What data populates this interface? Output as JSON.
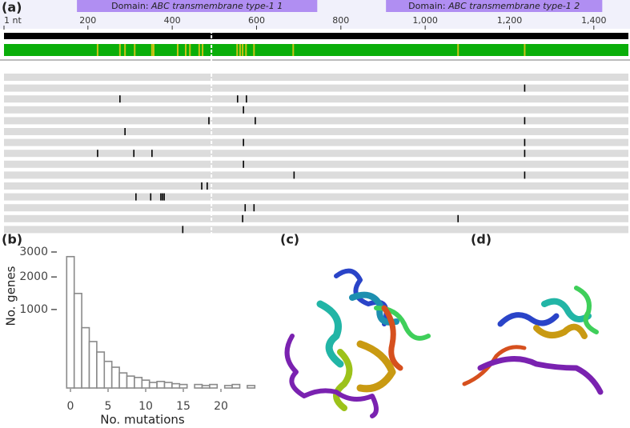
{
  "chart_data": [
    {
      "type": "track",
      "panel_label": "(a)",
      "xlim": [
        1,
        1482
      ],
      "xticks": [
        {
          "value": 1,
          "label": "1 nt"
        },
        200,
        400,
        600,
        800,
        {
          "value": 1000,
          "label": "1,000"
        },
        {
          "value": 1200,
          "label": "1,200"
        },
        {
          "value": 1400,
          "label": "1,400"
        }
      ],
      "domains": [
        {
          "prefix": "Domain:",
          "name": "ABC transmembrane type-1 1",
          "start": 174,
          "end": 744
        },
        {
          "prefix": "Domain:",
          "name": "ABC transmembrane type-1 2",
          "start": 907,
          "end": 1420
        }
      ],
      "break_position": 493,
      "variable_sites": [
        223,
        276,
        288,
        311,
        352,
        356,
        413,
        432,
        442,
        464,
        472,
        554,
        561,
        567,
        575,
        594,
        687,
        1078,
        1236
      ],
      "tracks": [
        [],
        [
          1236
        ],
        [
          276,
          555,
          576
        ],
        [
          569
        ],
        [
          487,
          597,
          1236
        ],
        [
          288
        ],
        [
          569,
          1236
        ],
        [
          223,
          309,
          352,
          1236
        ],
        [
          569
        ],
        [
          689,
          1236
        ],
        [
          470,
          483
        ],
        [
          314,
          349,
          373,
          377,
          381
        ],
        [
          573,
          594
        ],
        [
          567,
          1078
        ],
        [
          425
        ]
      ]
    },
    {
      "type": "histogram",
      "panel_label": "(b)",
      "color": "#8a8a8a",
      "bins": [
        -0.5,
        0.5,
        1.5,
        2.5,
        3.5,
        4.5,
        5.5,
        6.5,
        7.5,
        8.5,
        9.5,
        10.5,
        11.5,
        12.5,
        13.5,
        14.5,
        15.5,
        16.5,
        17.5,
        18.5,
        19.5,
        20.5,
        21.5,
        22.5,
        23.5,
        24.5
      ],
      "counts": [
        2800,
        1450,
        590,
        350,
        210,
        115,
        70,
        37,
        23,
        18,
        10,
        5,
        7,
        5,
        3,
        2,
        0,
        2,
        1,
        2,
        0,
        1,
        2,
        0,
        1
      ],
      "xlim": [
        -1,
        24.5
      ],
      "xticks": [
        0,
        5,
        10,
        15,
        20
      ],
      "ylim": [
        0,
        3000
      ],
      "yticks": [
        1000,
        2000,
        3000
      ],
      "yscale": "sqrt",
      "xlabel": "No. mutations",
      "ylabel": "No. genes"
    }
  ],
  "structures": [
    {
      "panel_label": "(c)"
    },
    {
      "panel_label": "(d)"
    }
  ]
}
